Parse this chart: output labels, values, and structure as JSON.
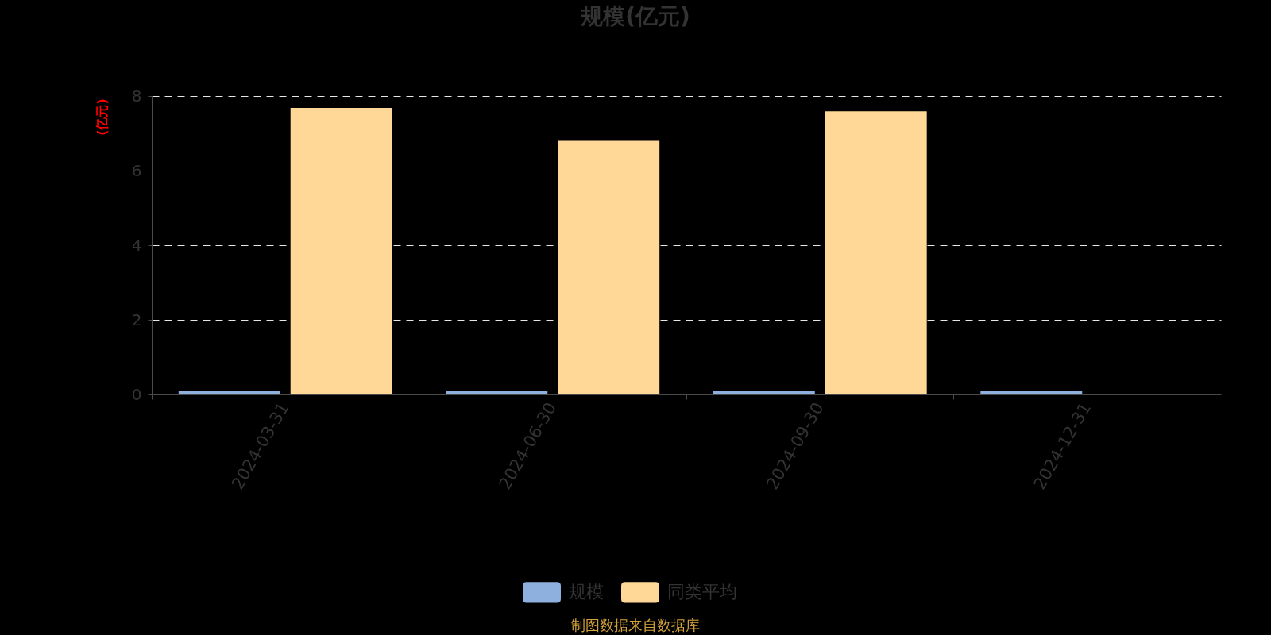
{
  "chart_data": {
    "type": "bar",
    "title": "规模(亿元)",
    "ylabel": "(亿元)",
    "categories": [
      "2024-03-31",
      "2024-06-30",
      "2024-09-30",
      "2024-12-31"
    ],
    "series": [
      {
        "name": "规模",
        "color": "#8eb0de",
        "values": [
          0.1,
          0.1,
          0.1,
          0.1
        ]
      },
      {
        "name": "同类平均",
        "color": "#ffd898",
        "values": [
          7.68,
          6.8,
          7.59,
          null
        ]
      }
    ],
    "ylim": [
      0,
      8
    ],
    "yticks": [
      0,
      2,
      4,
      6,
      8
    ],
    "grid": "y",
    "legend": "bottom",
    "annotations": [
      "制图数据来自数据库"
    ]
  }
}
